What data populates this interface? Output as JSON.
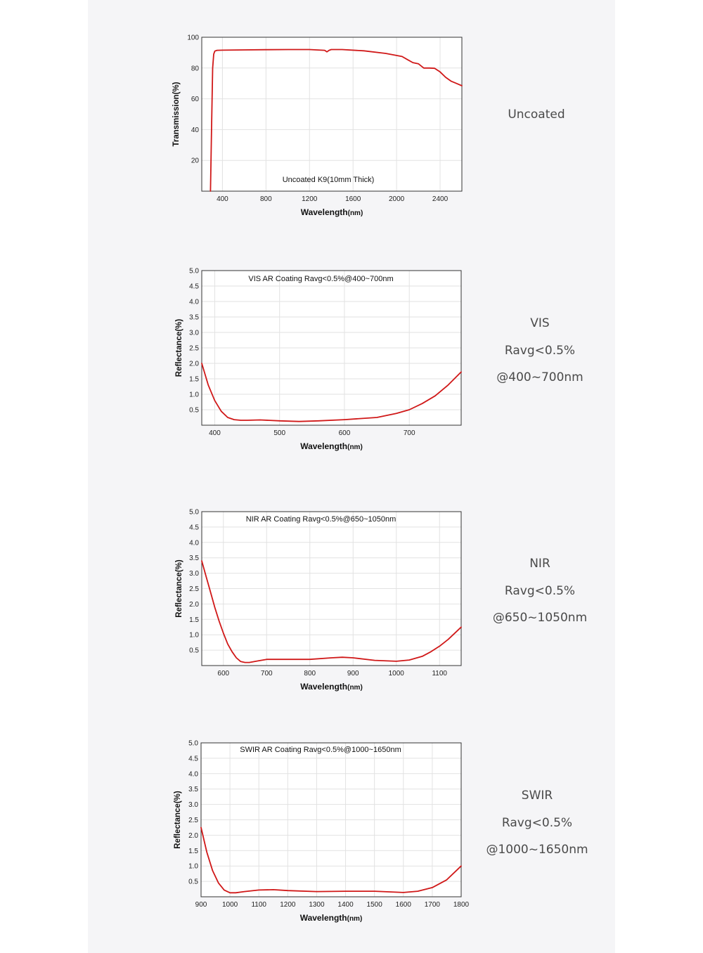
{
  "colors": {
    "curve": "#d01818",
    "grid": "#e2e2e2",
    "frame": "#333333",
    "background": "#f5f5f7"
  },
  "chart_data": [
    {
      "type": "line",
      "title": "Uncoated K9(10mm Thick)",
      "xlabel": "Wavelength",
      "xunit": "(nm)",
      "ylabel": "Transmission(%)",
      "xlim": [
        210,
        2600
      ],
      "ylim": [
        0,
        100
      ],
      "xticks": [
        "400",
        "800",
        "1200",
        "1600",
        "2000",
        "2400"
      ],
      "yticks": [
        "20",
        "40",
        "60",
        "80",
        "100"
      ],
      "grid": true,
      "x": [
        290,
        300,
        310,
        320,
        330,
        350,
        400,
        600,
        800,
        1000,
        1200,
        1340,
        1360,
        1380,
        1400,
        1500,
        1700,
        1900,
        2050,
        2100,
        2150,
        2200,
        2250,
        2300,
        2350,
        2400,
        2450,
        2500,
        2550,
        2600
      ],
      "y": [
        0,
        40,
        80,
        89,
        91,
        91.5,
        91.6,
        91.8,
        91.9,
        92,
        92,
        91.5,
        90.5,
        91.5,
        92,
        92,
        91.2,
        89.5,
        87.5,
        85.5,
        83.5,
        82.8,
        80,
        80,
        79.8,
        77.5,
        74,
        71.5,
        70,
        68.5
      ]
    },
    {
      "type": "line",
      "title": "VIS AR Coating Ravg<0.5%@400~700nm",
      "xlabel": "Wavelength",
      "xunit": "(nm)",
      "ylabel": "Reflectance(%)",
      "xlim": [
        380,
        780
      ],
      "ylim": [
        0,
        5
      ],
      "xticks": [
        "400",
        "500",
        "600",
        "700"
      ],
      "yticks": [
        "0.5",
        "1.0",
        "1.5",
        "2.0",
        "2.5",
        "3.0",
        "3.5",
        "4.0",
        "4.5",
        "5.0"
      ],
      "grid": true,
      "x": [
        380,
        390,
        400,
        410,
        420,
        430,
        440,
        450,
        470,
        500,
        530,
        560,
        600,
        650,
        680,
        700,
        720,
        740,
        760,
        780
      ],
      "y": [
        2.0,
        1.3,
        0.8,
        0.45,
        0.25,
        0.18,
        0.16,
        0.16,
        0.17,
        0.14,
        0.12,
        0.14,
        0.18,
        0.25,
        0.38,
        0.5,
        0.7,
        0.95,
        1.3,
        1.72
      ]
    },
    {
      "type": "line",
      "title": "NIR AR Coating Ravg<0.5%@650~1050nm",
      "xlabel": "Wavelength",
      "xunit": "(nm)",
      "ylabel": "Reflectance(%)",
      "xlim": [
        550,
        1150
      ],
      "ylim": [
        0,
        5
      ],
      "xticks": [
        "600",
        "700",
        "800",
        "900",
        "1000",
        "1100"
      ],
      "yticks": [
        "0.5",
        "1.0",
        "1.5",
        "2.0",
        "2.5",
        "3.0",
        "3.5",
        "4.0",
        "4.5",
        "5.0"
      ],
      "grid": true,
      "x": [
        550,
        560,
        570,
        580,
        590,
        600,
        610,
        620,
        630,
        640,
        650,
        660,
        680,
        700,
        750,
        800,
        850,
        875,
        900,
        950,
        1000,
        1030,
        1060,
        1080,
        1100,
        1120,
        1150
      ],
      "y": [
        3.4,
        2.9,
        2.4,
        1.9,
        1.45,
        1.05,
        0.7,
        0.45,
        0.25,
        0.13,
        0.1,
        0.1,
        0.15,
        0.2,
        0.2,
        0.2,
        0.25,
        0.27,
        0.25,
        0.17,
        0.14,
        0.18,
        0.3,
        0.45,
        0.63,
        0.85,
        1.25
      ]
    },
    {
      "type": "line",
      "title": "SWIR AR Coating Ravg<0.5%@1000~1650nm",
      "xlabel": "Wavelength",
      "xunit": "(nm)",
      "ylabel": "Reflectance(%)",
      "xlim": [
        900,
        1800
      ],
      "ylim": [
        0,
        5
      ],
      "xticks": [
        "900",
        "1000",
        "1100",
        "1200",
        "1300",
        "1400",
        "1500",
        "1600",
        "1700",
        "1800"
      ],
      "yticks": [
        "0.5",
        "1.0",
        "1.5",
        "2.0",
        "2.5",
        "3.0",
        "3.5",
        "4.0",
        "4.5",
        "5.0"
      ],
      "grid": true,
      "x": [
        900,
        920,
        940,
        960,
        980,
        1000,
        1020,
        1050,
        1100,
        1150,
        1200,
        1300,
        1400,
        1500,
        1600,
        1650,
        1700,
        1750,
        1800
      ],
      "y": [
        2.25,
        1.45,
        0.85,
        0.45,
        0.22,
        0.13,
        0.13,
        0.17,
        0.22,
        0.23,
        0.2,
        0.17,
        0.18,
        0.18,
        0.14,
        0.18,
        0.3,
        0.55,
        1.0
      ]
    }
  ],
  "labels": [
    {
      "lines": [
        "Uncoated"
      ]
    },
    {
      "lines": [
        "VIS",
        "Ravg<0.5%",
        "@400~700nm"
      ]
    },
    {
      "lines": [
        "NIR",
        "Ravg<0.5%",
        "@650~1050nm"
      ]
    },
    {
      "lines": [
        "SWIR",
        "Ravg<0.5%",
        "@1000~1650nm"
      ]
    }
  ]
}
